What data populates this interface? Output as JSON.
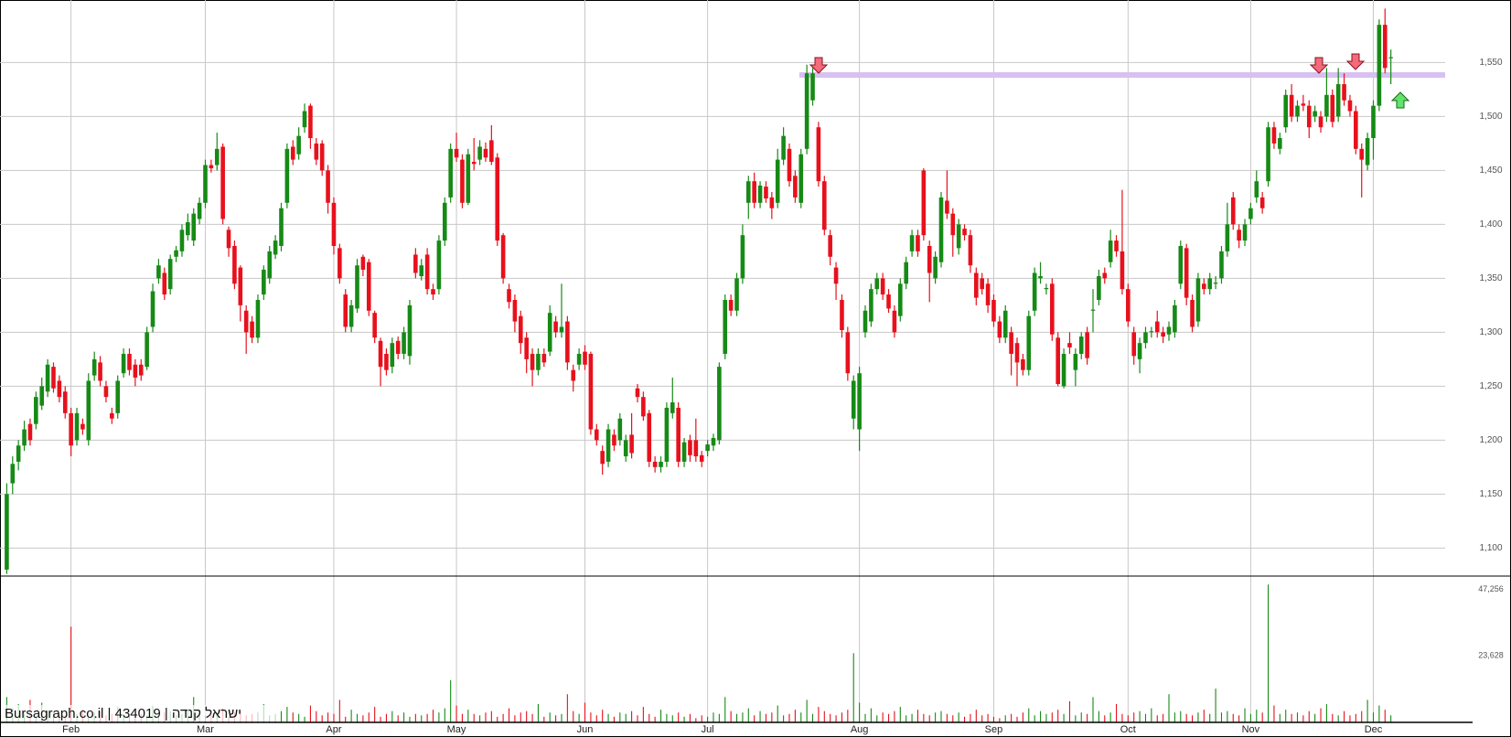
{
  "chart_data": {
    "type": "candlestick",
    "source": "Bursagraph.co.il | 434019 | ישראל קנדה",
    "up_color": "#168a16",
    "down_color": "#e8101c",
    "grid": true,
    "ylim": [
      1074,
      1608
    ],
    "yticks": [
      {
        "value": 1100,
        "label": "1,100"
      },
      {
        "value": 1150,
        "label": "1,150"
      },
      {
        "value": 1200,
        "label": "1,200"
      },
      {
        "value": 1250,
        "label": "1,250"
      },
      {
        "value": 1300,
        "label": "1,300"
      },
      {
        "value": 1350,
        "label": "1,350"
      },
      {
        "value": 1400,
        "label": "1,400"
      },
      {
        "value": 1450,
        "label": "1,450"
      },
      {
        "value": 1500,
        "label": "1,500"
      },
      {
        "value": 1550,
        "label": "1,550"
      }
    ],
    "categories": [
      null,
      null,
      null,
      null,
      null,
      null,
      null,
      null,
      null,
      null,
      null,
      "Feb",
      null,
      null,
      null,
      null,
      null,
      null,
      null,
      null,
      null,
      null,
      null,
      null,
      null,
      null,
      null,
      null,
      null,
      null,
      null,
      null,
      null,
      null,
      "Mar",
      null,
      null,
      null,
      null,
      null,
      null,
      null,
      null,
      null,
      null,
      null,
      null,
      null,
      null,
      null,
      null,
      null,
      null,
      null,
      null,
      null,
      "Apr",
      null,
      null,
      null,
      null,
      null,
      null,
      null,
      null,
      null,
      null,
      null,
      null,
      null,
      null,
      null,
      null,
      null,
      null,
      null,
      null,
      "May",
      null,
      null,
      null,
      null,
      null,
      null,
      null,
      null,
      null,
      null,
      null,
      null,
      null,
      null,
      null,
      null,
      null,
      null,
      null,
      null,
      null,
      "Jun",
      null,
      null,
      null,
      null,
      null,
      null,
      null,
      null,
      null,
      null,
      null,
      null,
      null,
      null,
      null,
      null,
      null,
      null,
      null,
      null,
      "Jul",
      null,
      null,
      null,
      null,
      null,
      null,
      null,
      null,
      null,
      null,
      null,
      null,
      null,
      null,
      null,
      null,
      null,
      null,
      null,
      null,
      null,
      null,
      null,
      null,
      null,
      "Aug",
      null,
      null,
      null,
      null,
      null,
      null,
      null,
      null,
      null,
      null,
      null,
      null,
      null,
      null,
      null,
      null,
      null,
      null,
      null,
      null,
      null,
      null,
      "Sep",
      null,
      null,
      null,
      null,
      null,
      null,
      null,
      null,
      null,
      null,
      null,
      null,
      null,
      null,
      null,
      null,
      null,
      null,
      null,
      null,
      null,
      null,
      "Oct",
      null,
      null,
      null,
      null,
      null,
      null,
      null,
      null,
      null,
      null,
      null,
      null,
      null,
      null,
      null,
      null,
      null,
      null,
      null,
      null,
      "Nov",
      null,
      null,
      null,
      null,
      null,
      null,
      null,
      null,
      null,
      null,
      null,
      null,
      null,
      null,
      null,
      null,
      null,
      null,
      null,
      null,
      "Dec",
      null,
      null,
      null
    ],
    "open": [
      1080,
      1160,
      1180,
      1195,
      1215,
      1215,
      1232,
      1245,
      1268,
      1255,
      1245,
      1225,
      1200,
      1215,
      1200,
      1260,
      1272,
      1250,
      1225,
      1225,
      1262,
      1280,
      1270,
      1270,
      1268,
      1305,
      1350,
      1355,
      1340,
      1370,
      1375,
      1390,
      1385,
      1405,
      1420,
      1455,
      1455,
      1472,
      1395,
      1380,
      1360,
      1320,
      1310,
      1295,
      1335,
      1350,
      1372,
      1380,
      1420,
      1472,
      1465,
      1490,
      1510,
      1475,
      1475,
      1450,
      1420,
      1378,
      1335,
      1305,
      1322,
      1370,
      1365,
      1318,
      1292,
      1280,
      1268,
      1292,
      1280,
      1278,
      1372,
      1352,
      1372,
      1340,
      1340,
      1385,
      1425,
      1470,
      1460,
      1420,
      1458,
      1460,
      1470,
      1478,
      1462,
      1390,
      1340,
      1330,
      1315,
      1295,
      1280,
      1265,
      1280,
      1282,
      1310,
      1300,
      1310,
      1265,
      1270,
      1282,
      1280,
      1210,
      1190,
      1180,
      1205,
      1200,
      1185,
      1205,
      1248,
      1240,
      1225,
      1180,
      1175,
      1180,
      1225,
      1230,
      1180,
      1200,
      1200,
      1186,
      1190,
      1195,
      1200,
      1280,
      1330,
      1320,
      1350,
      1420,
      1440,
      1420,
      1435,
      1425,
      1420,
      1460,
      1470,
      1445,
      1420,
      1470,
      1515,
      1490,
      1440,
      1390,
      1360,
      1330,
      1300,
      1220,
      1210,
      1300,
      1310,
      1340,
      1350,
      1335,
      1320,
      1315,
      1345,
      1375,
      1390,
      1450,
      1380,
      1350,
      1365,
      1422,
      1410,
      1378,
      1396,
      1390,
      1355,
      1350,
      1345,
      1330,
      1310,
      1295,
      1300,
      1290,
      1275,
      1265,
      1320,
      1350,
      1340,
      1345,
      1295,
      1250,
      1290,
      1265,
      1280,
      1300,
      1320,
      1330,
      1355,
      1365,
      1385,
      1375,
      1340,
      1300,
      1275,
      1290,
      1300,
      1310,
      1300,
      1298,
      1300,
      1345,
      1378,
      1330,
      1310,
      1345,
      1340,
      1345,
      1350,
      1375,
      1425,
      1395,
      1385,
      1405,
      1425,
      1425,
      1440,
      1490,
      1470,
      1490,
      1520,
      1500,
      1512,
      1510,
      1500,
      1500,
      1500,
      1520,
      1500,
      1530,
      1515,
      1505,
      1470,
      1455,
      1480,
      1510,
      1585,
      1555
    ],
    "high": [
      1160,
      1185,
      1200,
      1218,
      1220,
      1245,
      1258,
      1275,
      1272,
      1260,
      1250,
      1230,
      1230,
      1220,
      1262,
      1282,
      1278,
      1255,
      1230,
      1260,
      1285,
      1285,
      1275,
      1275,
      1305,
      1345,
      1368,
      1360,
      1372,
      1380,
      1400,
      1410,
      1415,
      1425,
      1460,
      1460,
      1485,
      1475,
      1398,
      1385,
      1362,
      1325,
      1315,
      1335,
      1362,
      1380,
      1390,
      1420,
      1475,
      1478,
      1490,
      1512,
      1512,
      1480,
      1478,
      1455,
      1425,
      1382,
      1340,
      1330,
      1368,
      1372,
      1368,
      1320,
      1295,
      1285,
      1295,
      1296,
      1305,
      1330,
      1378,
      1368,
      1378,
      1345,
      1390,
      1425,
      1475,
      1485,
      1465,
      1470,
      1480,
      1478,
      1476,
      1492,
      1466,
      1392,
      1345,
      1335,
      1320,
      1300,
      1285,
      1285,
      1285,
      1325,
      1315,
      1345,
      1315,
      1270,
      1285,
      1288,
      1282,
      1215,
      1195,
      1215,
      1210,
      1225,
      1205,
      1225,
      1252,
      1245,
      1228,
      1185,
      1185,
      1235,
      1258,
      1235,
      1202,
      1205,
      1220,
      1190,
      1200,
      1206,
      1272,
      1335,
      1335,
      1355,
      1400,
      1445,
      1448,
      1440,
      1440,
      1430,
      1470,
      1490,
      1475,
      1450,
      1470,
      1548,
      1545,
      1495,
      1445,
      1395,
      1365,
      1335,
      1305,
      1260,
      1268,
      1325,
      1345,
      1355,
      1355,
      1340,
      1325,
      1350,
      1370,
      1395,
      1395,
      1452,
      1385,
      1375,
      1430,
      1450,
      1415,
      1405,
      1400,
      1395,
      1360,
      1355,
      1350,
      1335,
      1315,
      1325,
      1305,
      1295,
      1280,
      1320,
      1360,
      1365,
      1345,
      1350,
      1300,
      1285,
      1300,
      1285,
      1300,
      1305,
      1340,
      1358,
      1360,
      1395,
      1390,
      1432,
      1345,
      1305,
      1295,
      1305,
      1305,
      1320,
      1305,
      1310,
      1330,
      1385,
      1382,
      1335,
      1355,
      1350,
      1355,
      1352,
      1380,
      1420,
      1430,
      1400,
      1405,
      1420,
      1450,
      1430,
      1495,
      1495,
      1485,
      1525,
      1530,
      1515,
      1520,
      1515,
      1510,
      1505,
      1545,
      1525,
      1545,
      1540,
      1520,
      1510,
      1475,
      1485,
      1515,
      1590,
      1600,
      1562
    ],
    "low": [
      1076,
      1150,
      1172,
      1190,
      1195,
      1210,
      1228,
      1240,
      1244,
      1235,
      1220,
      1185,
      1195,
      1205,
      1195,
      1255,
      1250,
      1235,
      1215,
      1220,
      1258,
      1260,
      1250,
      1255,
      1265,
      1300,
      1345,
      1330,
      1335,
      1365,
      1370,
      1385,
      1380,
      1400,
      1415,
      1448,
      1450,
      1400,
      1370,
      1340,
      1310,
      1280,
      1290,
      1290,
      1330,
      1345,
      1368,
      1375,
      1415,
      1455,
      1460,
      1485,
      1470,
      1455,
      1445,
      1410,
      1372,
      1345,
      1300,
      1300,
      1318,
      1352,
      1315,
      1290,
      1250,
      1260,
      1262,
      1275,
      1275,
      1270,
      1350,
      1348,
      1335,
      1330,
      1335,
      1380,
      1420,
      1458,
      1415,
      1418,
      1450,
      1455,
      1458,
      1455,
      1380,
      1345,
      1322,
      1300,
      1280,
      1262,
      1250,
      1260,
      1268,
      1278,
      1295,
      1295,
      1265,
      1245,
      1265,
      1265,
      1205,
      1195,
      1168,
      1175,
      1190,
      1195,
      1180,
      1183,
      1235,
      1218,
      1175,
      1170,
      1170,
      1175,
      1220,
      1175,
      1175,
      1180,
      1180,
      1175,
      1185,
      1190,
      1196,
      1275,
      1315,
      1315,
      1345,
      1405,
      1415,
      1415,
      1420,
      1405,
      1415,
      1455,
      1435,
      1420,
      1415,
      1465,
      1510,
      1435,
      1390,
      1362,
      1330,
      1295,
      1255,
      1210,
      1190,
      1295,
      1305,
      1335,
      1330,
      1318,
      1295,
      1310,
      1340,
      1370,
      1370,
      1385,
      1328,
      1345,
      1360,
      1405,
      1370,
      1372,
      1385,
      1355,
      1325,
      1335,
      1318,
      1305,
      1290,
      1290,
      1260,
      1250,
      1260,
      1260,
      1315,
      1345,
      1335,
      1292,
      1250,
      1248,
      1280,
      1250,
      1275,
      1270,
      1300,
      1325,
      1345,
      1360,
      1370,
      1335,
      1305,
      1270,
      1262,
      1285,
      1295,
      1295,
      1290,
      1292,
      1295,
      1340,
      1325,
      1300,
      1305,
      1335,
      1335,
      1340,
      1345,
      1370,
      1395,
      1378,
      1380,
      1400,
      1420,
      1410,
      1435,
      1470,
      1465,
      1485,
      1495,
      1495,
      1505,
      1480,
      1495,
      1485,
      1495,
      1490,
      1495,
      1510,
      1500,
      1465,
      1425,
      1450,
      1460,
      1505,
      1540,
      1530
    ],
    "close": [
      1150,
      1178,
      1195,
      1210,
      1200,
      1240,
      1250,
      1270,
      1248,
      1240,
      1225,
      1195,
      1225,
      1210,
      1255,
      1275,
      1255,
      1240,
      1220,
      1255,
      1280,
      1265,
      1258,
      1260,
      1300,
      1338,
      1362,
      1335,
      1368,
      1376,
      1395,
      1402,
      1410,
      1420,
      1455,
      1452,
      1470,
      1405,
      1378,
      1345,
      1325,
      1300,
      1295,
      1330,
      1358,
      1375,
      1385,
      1415,
      1470,
      1460,
      1482,
      1505,
      1480,
      1460,
      1450,
      1420,
      1380,
      1350,
      1305,
      1325,
      1362,
      1358,
      1320,
      1295,
      1268,
      1265,
      1290,
      1280,
      1300,
      1325,
      1355,
      1362,
      1340,
      1335,
      1385,
      1420,
      1470,
      1462,
      1420,
      1465,
      1456,
      1472,
      1462,
      1458,
      1385,
      1350,
      1328,
      1310,
      1290,
      1275,
      1265,
      1280,
      1272,
      1318,
      1300,
      1305,
      1272,
      1255,
      1280,
      1270,
      1210,
      1200,
      1178,
      1210,
      1195,
      1220,
      1200,
      1188,
      1240,
      1222,
      1180,
      1175,
      1180,
      1230,
      1235,
      1180,
      1198,
      1186,
      1185,
      1180,
      1196,
      1202,
      1268,
      1330,
      1320,
      1350,
      1390,
      1440,
      1420,
      1436,
      1424,
      1415,
      1460,
      1482,
      1440,
      1425,
      1465,
      1540,
      1540,
      1440,
      1395,
      1370,
      1345,
      1302,
      1262,
      1255,
      1262,
      1320,
      1340,
      1350,
      1335,
      1322,
      1300,
      1345,
      1365,
      1390,
      1375,
      1390,
      1355,
      1370,
      1425,
      1410,
      1390,
      1400,
      1390,
      1362,
      1332,
      1340,
      1325,
      1310,
      1295,
      1320,
      1280,
      1272,
      1265,
      1315,
      1355,
      1352,
      1341,
      1298,
      1252,
      1280,
      1286,
      1280,
      1296,
      1276,
      1321,
      1352,
      1350,
      1385,
      1375,
      1340,
      1310,
      1278,
      1290,
      1300,
      1301,
      1300,
      1296,
      1305,
      1325,
      1380,
      1332,
      1305,
      1350,
      1340,
      1350,
      1346,
      1375,
      1400,
      1400,
      1385,
      1400,
      1415,
      1440,
      1415,
      1490,
      1475,
      1480,
      1520,
      1500,
      1510,
      1510,
      1490,
      1505,
      1490,
      1520,
      1495,
      1530,
      1515,
      1505,
      1470,
      1460,
      1480,
      1510,
      1585,
      1545,
      1555
    ],
    "volume": {
      "ylim": [
        0,
        52000
      ],
      "yticks": [
        {
          "value": 23628,
          "label": "23,628"
        },
        {
          "value": 47256,
          "label": "47,256"
        }
      ],
      "values": [
        9000,
        5000,
        6500,
        3000,
        8000,
        2500,
        7000,
        4000,
        3500,
        3000,
        2500,
        34000,
        3000,
        4500,
        2000,
        3500,
        4000,
        2500,
        3000,
        5500,
        3000,
        2000,
        4500,
        3000,
        2500,
        6000,
        2000,
        3500,
        4000,
        2500,
        3000,
        4500,
        9000,
        3500,
        2500,
        4000,
        3000,
        5000,
        2000,
        3500,
        4000,
        2500,
        3000,
        3500,
        6500,
        2500,
        3000,
        4000,
        5500,
        3500,
        3000,
        2000,
        6000,
        4000,
        2500,
        3500,
        3000,
        8000,
        2000,
        4500,
        3000,
        2500,
        3500,
        5500,
        2000,
        3000,
        4000,
        2500,
        3500,
        2000,
        3000,
        2500,
        3000,
        4500,
        3500,
        5000,
        15000,
        6000,
        3000,
        4500,
        3000,
        2500,
        3500,
        4000,
        2000,
        3000,
        5000,
        2500,
        3500,
        4000,
        3000,
        6500,
        2000,
        3500,
        2500,
        3000,
        10000,
        4000,
        3000,
        7000,
        3500,
        2500,
        4500,
        3000,
        2000,
        3500,
        3000,
        4000,
        2500,
        5500,
        3000,
        2000,
        4500,
        3000,
        2500,
        3500,
        2000,
        3000,
        1500,
        2500,
        2000,
        3500,
        3000,
        9000,
        4000,
        3000,
        3500,
        5000,
        2500,
        4000,
        3000,
        3500,
        6000,
        2500,
        3000,
        4500,
        3500,
        8000,
        3000,
        5500,
        4000,
        3000,
        2500,
        3500,
        4500,
        24600,
        7000,
        3000,
        5000,
        2500,
        3500,
        3000,
        4000,
        5500,
        2500,
        3000,
        4500,
        3000,
        2500,
        3500,
        4000,
        3000,
        2500,
        3500,
        2000,
        3000,
        4500,
        2500,
        3000,
        2000,
        1500,
        2500,
        3000,
        2000,
        3500,
        5000,
        2500,
        4000,
        3000,
        3500,
        4500,
        3000,
        7500,
        2500,
        3500,
        3000,
        9000,
        4000,
        2500,
        3500,
        6500,
        3000,
        2500,
        3500,
        4000,
        3000,
        5000,
        2500,
        3000,
        10000,
        3500,
        4000,
        3000,
        2500,
        3500,
        4500,
        3000,
        12000,
        3500,
        4000,
        3000,
        2500,
        5000,
        3000,
        4500,
        3500,
        49000,
        6000,
        3000,
        4500,
        3000,
        3500,
        2500,
        4000,
        3000,
        5000,
        6500,
        3000,
        2500,
        4000,
        2500,
        3000,
        4000,
        8000,
        3500,
        6000,
        4500,
        2500
      ]
    }
  }
}
